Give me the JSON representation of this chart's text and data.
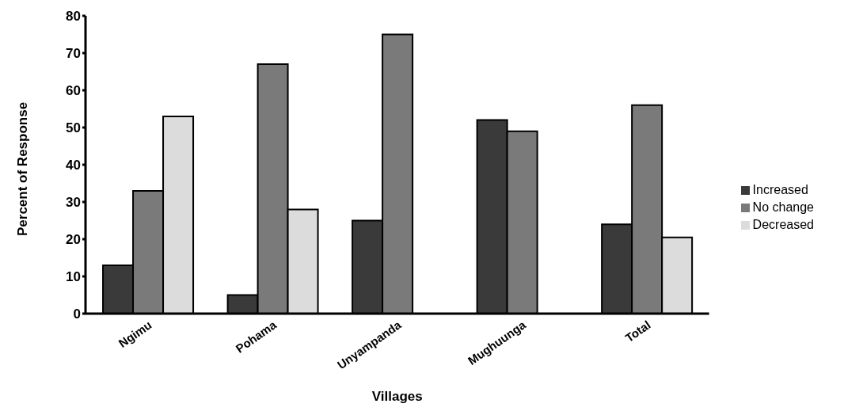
{
  "chart_data": {
    "type": "bar",
    "xlabel": "Villages",
    "ylabel": "Percent of Response",
    "categories": [
      "Ngimu",
      "Pohama",
      "Unyampanda",
      "Mughuunga",
      "Total"
    ],
    "series": [
      {
        "name": "Increased",
        "color": "#3a3a3a",
        "values": [
          13,
          5,
          25,
          52,
          24
        ]
      },
      {
        "name": "No change",
        "color": "#7a7a7a",
        "values": [
          33,
          67,
          75,
          49,
          56
        ]
      },
      {
        "name": "Decreased",
        "color": "#dcdcdc",
        "values": [
          53,
          28,
          null,
          null,
          20.5
        ]
      }
    ],
    "ylim": [
      0,
      80
    ],
    "yticks": [
      0,
      10,
      20,
      30,
      40,
      50,
      60,
      70,
      80
    ],
    "grid": false,
    "legend": "right"
  }
}
